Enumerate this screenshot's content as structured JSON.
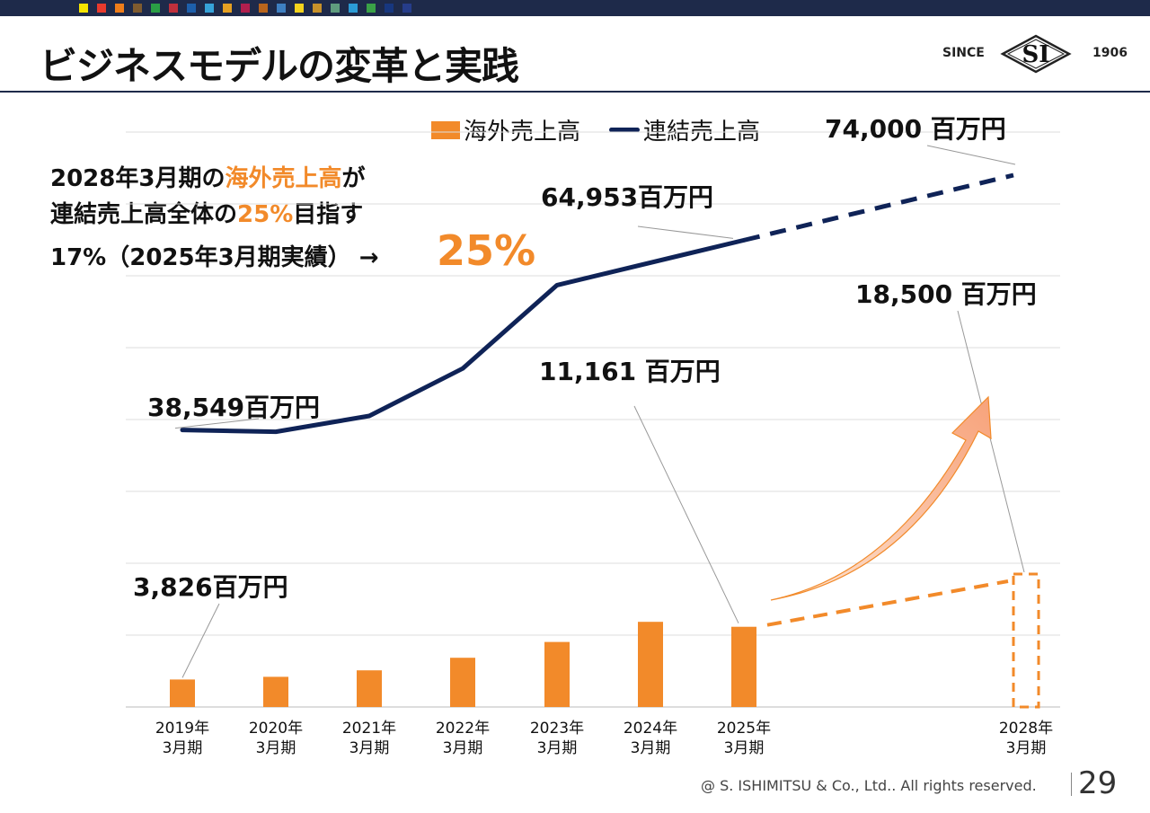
{
  "header": {
    "title": "ビジネスモデルの変革と実践",
    "logo": {
      "since": "SINCE",
      "mark": "SI",
      "year": "1906"
    },
    "color_swatches": [
      "#f5e400",
      "#e83a2d",
      "#ef7d1a",
      "#7f5b2f",
      "#2a9e45",
      "#c0303c",
      "#1d5fab",
      "#36a2d8",
      "#e5a022",
      "#b01f4e",
      "#b9651c",
      "#3e7fc1",
      "#f3d21d",
      "#c7912a",
      "#5f9c7e",
      "#2b9bd5",
      "#3aa147",
      "#17377f",
      "#263d8a"
    ]
  },
  "description": {
    "line1_prefix": "2028年3月期の",
    "line1_highlight": "海外売上高",
    "line1_suffix": "が",
    "line2_prefix": "連結売上高全体の",
    "line2_highlight": "25%",
    "line2_suffix": "目指す",
    "line3": "17%（2025年3月期実績） →",
    "target": "25%"
  },
  "chart_data": {
    "type": "bar",
    "categories": [
      "2019年\n3月期",
      "2020年\n3月期",
      "2021年\n3月期",
      "2022年\n3月期",
      "2023年\n3月期",
      "2024年\n3月期",
      "2025年\n3月期",
      "2028年\n3月期"
    ],
    "series": [
      {
        "name": "海外売上高",
        "type": "bar",
        "color": "#f28a2a",
        "values": [
          3826,
          4200,
          5100,
          6850,
          9050,
          11850,
          11161,
          18500
        ],
        "target_dashed_categories": [
          "2028年\n3月期"
        ]
      },
      {
        "name": "連結売上高",
        "type": "line",
        "color": "#0f2357",
        "values": [
          38549,
          38300,
          40500,
          47100,
          58700,
          null,
          64953,
          74000
        ],
        "dashed_segment": [
          "2025年\n3月期",
          "2028年\n3月期"
        ]
      }
    ],
    "ylim": [
      0,
      91000
    ],
    "grid": true,
    "legend": "top",
    "annotations": {
      "overseas_2019": "3,826百万円",
      "overseas_2025": "11,161 百万円",
      "overseas_2028": "18,500 百万円",
      "consolidated_2019": "38,549百万円",
      "consolidated_2025": "64,953百万円",
      "consolidated_2028": "74,000 百万円"
    }
  },
  "footer": {
    "copyright": "@ S. ISHIMITSU & Co., Ltd.. All rights reserved.",
    "page": "29"
  }
}
